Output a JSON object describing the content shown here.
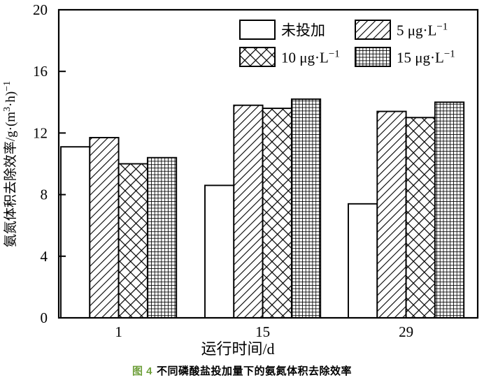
{
  "figure": {
    "caption_number": "图 4",
    "caption_title": "不同磷酸盐投加量下的氨氮体积去除效率",
    "caption_number_color": "#6fa03c",
    "line_color": "#000000",
    "background_color": "#ffffff"
  },
  "chart_data": {
    "type": "bar",
    "title": "",
    "categories": [
      "1",
      "15",
      "29"
    ],
    "series": [
      {
        "name": "未投加",
        "pattern": "plain",
        "values": [
          11.1,
          8.6,
          7.4
        ],
        "name_parts": [
          {
            "t": "未投加"
          }
        ]
      },
      {
        "name": "5 μg·L−1",
        "pattern": "diagonal-hatch",
        "values": [
          11.7,
          13.8,
          13.4
        ],
        "name_parts": [
          {
            "t": "5 μg·L"
          },
          {
            "t": "−1",
            "sup": true
          }
        ]
      },
      {
        "name": "10 μg·L−1",
        "pattern": "diamond-crosshatch",
        "values": [
          10.0,
          13.6,
          13.0
        ],
        "name_parts": [
          {
            "t": "10 μg·L"
          },
          {
            "t": "−1",
            "sup": true
          }
        ]
      },
      {
        "name": "15 μg·L−1",
        "pattern": "square-grid",
        "values": [
          10.4,
          14.2,
          14.0
        ],
        "name_parts": [
          {
            "t": "15 μg·L"
          },
          {
            "t": "−1",
            "sup": true
          }
        ]
      }
    ],
    "xlabel": "运行时间/d",
    "ylabel": "氨氮体积去除效率/g·(m³·h)−1",
    "ylabel_parts": [
      {
        "t": "氨氮体积去除效率/g·(m"
      },
      {
        "t": "3",
        "sup": true
      },
      {
        "t": "·h)"
      },
      {
        "t": "−1",
        "sup": true
      }
    ],
    "xticks": [
      "1",
      "15",
      "29"
    ],
    "yticks": [
      "0",
      "4",
      "8",
      "12",
      "16",
      "20"
    ],
    "ylim": [
      0,
      20
    ],
    "bar_fill": "#ffffff",
    "bar_stroke": "#000000",
    "grid": false,
    "legend_position": "top-right-inside"
  }
}
